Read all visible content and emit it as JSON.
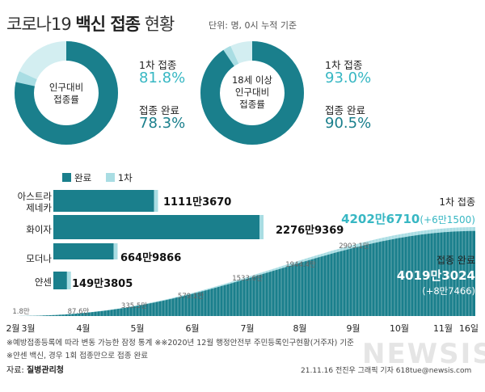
{
  "header": {
    "title_prefix": "코로나19",
    "title_bold": "백신 접종",
    "title_suffix": "현황",
    "unit_note": "단위: 명, 0시 누적 기준"
  },
  "donuts": [
    {
      "center_lines": [
        "인구대비",
        "접종률"
      ],
      "first_label": "1차 접종",
      "first_value": "81.8%",
      "full_label": "접종 완료",
      "full_value": "78.3%",
      "first_pct": 81.8,
      "full_pct": 78.3
    },
    {
      "center_lines": [
        "18세 이상",
        "인구대비",
        "접종률"
      ],
      "first_label": "1차 접종",
      "first_value": "93.0%",
      "full_label": "접종 완료",
      "full_value": "90.5%",
      "first_pct": 93.0,
      "full_pct": 90.5
    }
  ],
  "colors": {
    "full": "#1a7f8c",
    "first": "#a9dde3",
    "track": "#d3eef1"
  },
  "chart_data": [
    {
      "type": "bar",
      "orientation": "horizontal",
      "legend": [
        "완료",
        "1차"
      ],
      "categories": [
        "아스트라제네카",
        "화이자",
        "모더나",
        "얀센"
      ],
      "category_lines": [
        [
          "아스트라",
          "제네카"
        ],
        [
          "화이자"
        ],
        [
          "모더나"
        ],
        [
          "얀센"
        ]
      ],
      "series": [
        {
          "name": "완료",
          "values": [
            11113670,
            22769369,
            6649866,
            1493805
          ]
        }
      ],
      "value_labels": [
        "1111만3670",
        "2276만9369",
        "664만9866",
        "149만3805"
      ]
    },
    {
      "type": "area",
      "x": [
        "2월",
        "3월",
        "4월",
        "5월",
        "6월",
        "7월",
        "8월",
        "9월",
        "10월",
        "11월",
        "16일"
      ],
      "checkpoints": [
        "1.8만",
        "87.6만",
        "335.5만",
        "579.1만",
        "1533.6만",
        "1944.4만",
        "2903.1만"
      ],
      "series": [
        {
          "name": "1차 접종",
          "final": "4202만6710",
          "delta": "(+6만1500)",
          "final_value": 42026710
        },
        {
          "name": "접종 완료",
          "final": "4019만3024",
          "delta": "(+8만7466)",
          "final_value": 40193024
        }
      ]
    }
  ],
  "notes": [
    "※예방접종등록에 따라 변동 가능한 잠정 통계 ※※2020년 12월 행정안전부 주민등록인구현황(거주자) 기준",
    "※얀센 백신, 경우 1회 접종만으로 접종 완료"
  ],
  "source_label": "자료:",
  "source_name": "질병관리청",
  "credit": "21.11.16  전진우 그래픽 기자  618tue@newsis.com",
  "watermark": "NEWSIS"
}
